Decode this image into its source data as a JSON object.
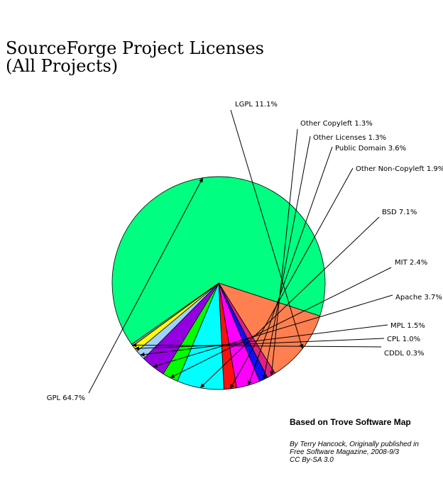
{
  "chart_data": {
    "type": "pie",
    "title": "SourceForge Project Licenses",
    "subtitle": "(All Projects)",
    "slices": [
      {
        "name": "LGPL",
        "label": "LGPL 11.1%",
        "value": 11.1,
        "color": "#ff7f50"
      },
      {
        "name": "Other Copyleft",
        "label": "Other Copyleft 1.3%",
        "value": 1.3,
        "color": "#e0207f"
      },
      {
        "name": "Other Licenses",
        "label": "Other Licenses 1.3%",
        "value": 1.3,
        "color": "#1010ff"
      },
      {
        "name": "Public Domain",
        "label": "Public Domain 3.6%",
        "value": 3.6,
        "color": "#ff00ff"
      },
      {
        "name": "Other Non-Copyleft",
        "label": "Other Non-Copyleft 1.9%",
        "value": 1.9,
        "color": "#ff1010"
      },
      {
        "name": "BSD",
        "label": "BSD 7.1%",
        "value": 7.1,
        "color": "#00ffff"
      },
      {
        "name": "MIT",
        "label": "MIT 2.4%",
        "value": 2.4,
        "color": "#00ff00"
      },
      {
        "name": "Apache",
        "label": "Apache 3.7%",
        "value": 3.7,
        "color": "#9400e0"
      },
      {
        "name": "MPL",
        "label": "MPL 1.5%",
        "value": 1.5,
        "color": "#9fd0ff"
      },
      {
        "name": "CPL",
        "label": "CPL 1.0%",
        "value": 1.0,
        "color": "#ffff00"
      },
      {
        "name": "CDDL",
        "label": "CDDL 0.3%",
        "value": 0.3,
        "color": "#a0a0a0"
      },
      {
        "name": "GPL",
        "label": "GPL 64.7%",
        "value": 64.7,
        "color": "#00ff80"
      }
    ]
  },
  "credit": {
    "title": "Based on Trove Software Map",
    "line1": "By Terry Hancock, Originally published in",
    "line2": "Free Software Magazine, 2008-9/3",
    "line3": "CC By-SA 3.0"
  }
}
